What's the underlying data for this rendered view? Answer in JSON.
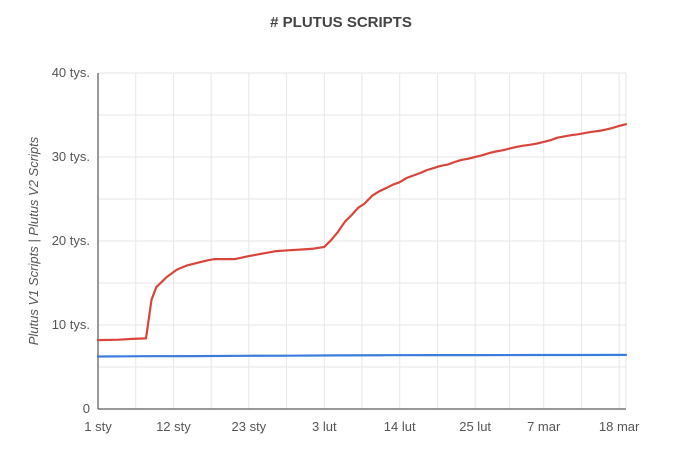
{
  "chart_data": {
    "type": "line",
    "title": "# PLUTUS SCRIPTS",
    "xlabel": "",
    "ylabel": "Plutus V1 Scripts | Plutus V2 Scripts",
    "x_start": "1 sty",
    "x_ticks": [
      {
        "label": "1 sty",
        "day": 0
      },
      {
        "label": "12 sty",
        "day": 11
      },
      {
        "label": "23 sty",
        "day": 22
      },
      {
        "label": "3 lut",
        "day": 33
      },
      {
        "label": "14 lut",
        "day": 44
      },
      {
        "label": "25 lut",
        "day": 55
      },
      {
        "label": "7 mar",
        "day": 65
      },
      {
        "label": "18 mar",
        "day": 76
      }
    ],
    "y_ticks": [
      {
        "label": "0",
        "value": 0
      },
      {
        "label": "10 tys.",
        "value": 10000
      },
      {
        "label": "20 tys.",
        "value": 20000
      },
      {
        "label": "30 tys.",
        "value": 30000
      },
      {
        "label": "40 tys.",
        "value": 40000
      }
    ],
    "ylim": [
      0,
      40000
    ],
    "xlim": [
      0,
      77
    ],
    "grid": true,
    "series": [
      {
        "color": "#d9453a",
        "points": [
          [
            0,
            8200
          ],
          [
            3,
            8250
          ],
          [
            5,
            8350
          ],
          [
            7,
            8400
          ],
          [
            7.8,
            13000
          ],
          [
            8.5,
            14500
          ],
          [
            10,
            15700
          ],
          [
            11.5,
            16600
          ],
          [
            13,
            17100
          ],
          [
            14.5,
            17400
          ],
          [
            16,
            17700
          ],
          [
            17,
            17850
          ],
          [
            20,
            17850
          ],
          [
            22,
            18200
          ],
          [
            24,
            18500
          ],
          [
            26,
            18800
          ],
          [
            28,
            18900
          ],
          [
            30,
            19000
          ],
          [
            31.5,
            19100
          ],
          [
            33,
            19300
          ],
          [
            34,
            20100
          ],
          [
            35,
            21100
          ],
          [
            36,
            22300
          ],
          [
            37,
            23100
          ],
          [
            38,
            24000
          ],
          [
            38.8,
            24400
          ],
          [
            40,
            25400
          ],
          [
            41,
            25900
          ],
          [
            42,
            26300
          ],
          [
            43,
            26700
          ],
          [
            44,
            27000
          ],
          [
            45,
            27500
          ],
          [
            46,
            27800
          ],
          [
            47,
            28100
          ],
          [
            48,
            28450
          ],
          [
            49,
            28700
          ],
          [
            50,
            28950
          ],
          [
            51,
            29100
          ],
          [
            52,
            29400
          ],
          [
            53,
            29650
          ],
          [
            54,
            29800
          ],
          [
            55,
            30000
          ],
          [
            56,
            30200
          ],
          [
            57,
            30450
          ],
          [
            58,
            30650
          ],
          [
            59,
            30800
          ],
          [
            60,
            31000
          ],
          [
            61,
            31200
          ],
          [
            62,
            31350
          ],
          [
            63,
            31450
          ],
          [
            64,
            31600
          ],
          [
            65,
            31800
          ],
          [
            66,
            32000
          ],
          [
            67,
            32300
          ],
          [
            68,
            32450
          ],
          [
            69,
            32600
          ],
          [
            70,
            32700
          ],
          [
            71,
            32850
          ],
          [
            72,
            33000
          ],
          [
            73,
            33100
          ],
          [
            74,
            33250
          ],
          [
            75,
            33450
          ],
          [
            76,
            33700
          ],
          [
            77,
            33900
          ]
        ]
      },
      {
        "color": "#3b7ddd",
        "points": [
          [
            0,
            6250
          ],
          [
            7,
            6280
          ],
          [
            14,
            6300
          ],
          [
            21,
            6330
          ],
          [
            28,
            6350
          ],
          [
            35,
            6380
          ],
          [
            42,
            6400
          ],
          [
            49,
            6420
          ],
          [
            56,
            6420
          ],
          [
            63,
            6430
          ],
          [
            70,
            6430
          ],
          [
            77,
            6440
          ]
        ]
      }
    ]
  }
}
